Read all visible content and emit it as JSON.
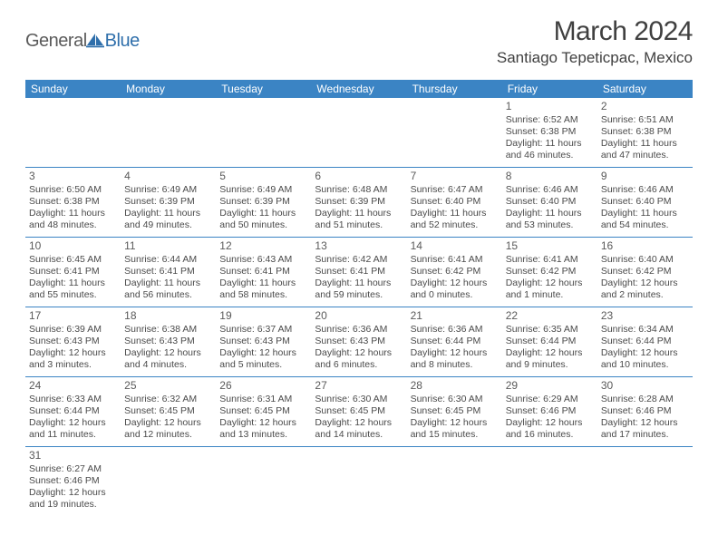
{
  "logo": {
    "text_general": "General",
    "text_blue": "Blue"
  },
  "title": "March 2024",
  "location": "Santiago Tepeticpac, Mexico",
  "colors": {
    "header_bg": "#3b84c4",
    "header_text": "#ffffff",
    "border": "#3b84c4",
    "body_text": "#4a4a4a",
    "title_text": "#404040",
    "logo_gray": "#5a5a5a",
    "logo_blue": "#2f6fab"
  },
  "weekdays": [
    "Sunday",
    "Monday",
    "Tuesday",
    "Wednesday",
    "Thursday",
    "Friday",
    "Saturday"
  ],
  "weeks": [
    [
      null,
      null,
      null,
      null,
      null,
      {
        "n": "1",
        "sr": "6:52 AM",
        "ss": "6:38 PM",
        "dl": "11 hours and 46 minutes."
      },
      {
        "n": "2",
        "sr": "6:51 AM",
        "ss": "6:38 PM",
        "dl": "11 hours and 47 minutes."
      }
    ],
    [
      {
        "n": "3",
        "sr": "6:50 AM",
        "ss": "6:38 PM",
        "dl": "11 hours and 48 minutes."
      },
      {
        "n": "4",
        "sr": "6:49 AM",
        "ss": "6:39 PM",
        "dl": "11 hours and 49 minutes."
      },
      {
        "n": "5",
        "sr": "6:49 AM",
        "ss": "6:39 PM",
        "dl": "11 hours and 50 minutes."
      },
      {
        "n": "6",
        "sr": "6:48 AM",
        "ss": "6:39 PM",
        "dl": "11 hours and 51 minutes."
      },
      {
        "n": "7",
        "sr": "6:47 AM",
        "ss": "6:40 PM",
        "dl": "11 hours and 52 minutes."
      },
      {
        "n": "8",
        "sr": "6:46 AM",
        "ss": "6:40 PM",
        "dl": "11 hours and 53 minutes."
      },
      {
        "n": "9",
        "sr": "6:46 AM",
        "ss": "6:40 PM",
        "dl": "11 hours and 54 minutes."
      }
    ],
    [
      {
        "n": "10",
        "sr": "6:45 AM",
        "ss": "6:41 PM",
        "dl": "11 hours and 55 minutes."
      },
      {
        "n": "11",
        "sr": "6:44 AM",
        "ss": "6:41 PM",
        "dl": "11 hours and 56 minutes."
      },
      {
        "n": "12",
        "sr": "6:43 AM",
        "ss": "6:41 PM",
        "dl": "11 hours and 58 minutes."
      },
      {
        "n": "13",
        "sr": "6:42 AM",
        "ss": "6:41 PM",
        "dl": "11 hours and 59 minutes."
      },
      {
        "n": "14",
        "sr": "6:41 AM",
        "ss": "6:42 PM",
        "dl": "12 hours and 0 minutes."
      },
      {
        "n": "15",
        "sr": "6:41 AM",
        "ss": "6:42 PM",
        "dl": "12 hours and 1 minute."
      },
      {
        "n": "16",
        "sr": "6:40 AM",
        "ss": "6:42 PM",
        "dl": "12 hours and 2 minutes."
      }
    ],
    [
      {
        "n": "17",
        "sr": "6:39 AM",
        "ss": "6:43 PM",
        "dl": "12 hours and 3 minutes."
      },
      {
        "n": "18",
        "sr": "6:38 AM",
        "ss": "6:43 PM",
        "dl": "12 hours and 4 minutes."
      },
      {
        "n": "19",
        "sr": "6:37 AM",
        "ss": "6:43 PM",
        "dl": "12 hours and 5 minutes."
      },
      {
        "n": "20",
        "sr": "6:36 AM",
        "ss": "6:43 PM",
        "dl": "12 hours and 6 minutes."
      },
      {
        "n": "21",
        "sr": "6:36 AM",
        "ss": "6:44 PM",
        "dl": "12 hours and 8 minutes."
      },
      {
        "n": "22",
        "sr": "6:35 AM",
        "ss": "6:44 PM",
        "dl": "12 hours and 9 minutes."
      },
      {
        "n": "23",
        "sr": "6:34 AM",
        "ss": "6:44 PM",
        "dl": "12 hours and 10 minutes."
      }
    ],
    [
      {
        "n": "24",
        "sr": "6:33 AM",
        "ss": "6:44 PM",
        "dl": "12 hours and 11 minutes."
      },
      {
        "n": "25",
        "sr": "6:32 AM",
        "ss": "6:45 PM",
        "dl": "12 hours and 12 minutes."
      },
      {
        "n": "26",
        "sr": "6:31 AM",
        "ss": "6:45 PM",
        "dl": "12 hours and 13 minutes."
      },
      {
        "n": "27",
        "sr": "6:30 AM",
        "ss": "6:45 PM",
        "dl": "12 hours and 14 minutes."
      },
      {
        "n": "28",
        "sr": "6:30 AM",
        "ss": "6:45 PM",
        "dl": "12 hours and 15 minutes."
      },
      {
        "n": "29",
        "sr": "6:29 AM",
        "ss": "6:46 PM",
        "dl": "12 hours and 16 minutes."
      },
      {
        "n": "30",
        "sr": "6:28 AM",
        "ss": "6:46 PM",
        "dl": "12 hours and 17 minutes."
      }
    ],
    [
      {
        "n": "31",
        "sr": "6:27 AM",
        "ss": "6:46 PM",
        "dl": "12 hours and 19 minutes."
      },
      null,
      null,
      null,
      null,
      null,
      null
    ]
  ],
  "labels": {
    "sunrise": "Sunrise:",
    "sunset": "Sunset:",
    "daylight": "Daylight:"
  }
}
